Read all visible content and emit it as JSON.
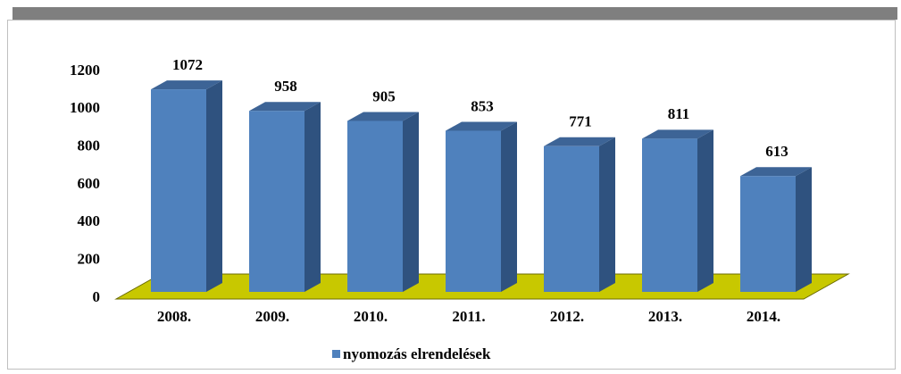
{
  "chart_data": {
    "type": "bar",
    "categories": [
      "2008.",
      "2009.",
      "2010.",
      "2011.",
      "2012.",
      "2013.",
      "2014."
    ],
    "series": [
      {
        "name": "nyomozás elrendelések",
        "color": "#4f81bd",
        "values": [
          1072,
          958,
          905,
          853,
          771,
          811,
          613
        ]
      }
    ],
    "ylim": [
      0,
      1200
    ],
    "yticks": [
      0,
      200,
      400,
      600,
      800,
      1000,
      1200
    ],
    "grid": false,
    "legend": "bottom"
  }
}
